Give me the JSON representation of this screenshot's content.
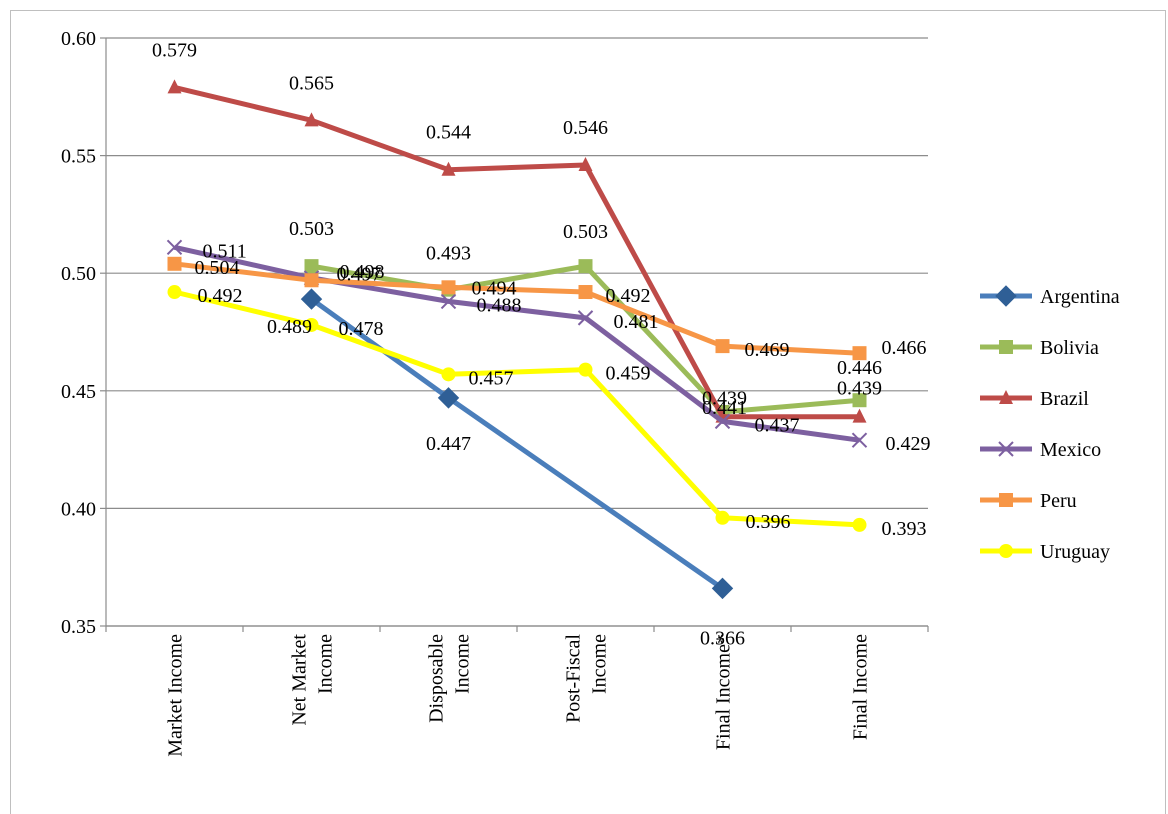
{
  "chart_data": {
    "type": "line",
    "title": "",
    "xlabel": "",
    "ylabel": "",
    "ylim": [
      0.35,
      0.6
    ],
    "y_ticks": [
      "0.35",
      "0.40",
      "0.45",
      "0.50",
      "0.55",
      "0.60"
    ],
    "categories": [
      "Market Income",
      "Net Market Income",
      "Disposable Income",
      "Post-Fiscal Income",
      "Final Income*",
      "Final Income"
    ],
    "grid": "horizontal",
    "legend_position": "right",
    "series": [
      {
        "name": "Argentina",
        "color": "#4a7ebb",
        "marker": "diamond",
        "values": [
          null,
          0.489,
          0.447,
          null,
          0.366,
          null
        ],
        "labels": [
          null,
          "0.489",
          "0.447",
          null,
          "0.366",
          null
        ]
      },
      {
        "name": "Bolivia",
        "color": "#9bbb59",
        "marker": "square",
        "values": [
          null,
          0.503,
          0.493,
          0.503,
          0.441,
          0.446
        ],
        "labels": [
          null,
          "0.503",
          "0.493",
          "0.503",
          "0.441",
          "0.446"
        ]
      },
      {
        "name": "Brazil",
        "color": "#be4b48",
        "marker": "triangle",
        "values": [
          0.579,
          0.565,
          0.544,
          0.546,
          0.439,
          0.439
        ],
        "labels": [
          "0.579",
          "0.565",
          "0.544",
          "0.546",
          "0.439",
          "0.439"
        ]
      },
      {
        "name": "Mexico",
        "color": "#7d60a0",
        "marker": "x",
        "values": [
          0.511,
          0.498,
          0.488,
          0.481,
          0.437,
          0.429
        ],
        "labels": [
          "0.511",
          "0.498",
          "0.488",
          "0.481",
          "0.437",
          "0.429"
        ]
      },
      {
        "name": "Peru",
        "color": "#f79646",
        "marker": "square",
        "values": [
          0.504,
          0.497,
          0.494,
          0.492,
          0.469,
          0.466
        ],
        "labels": [
          "0.504",
          "0.497",
          "0.494",
          "0.492",
          "0.469",
          "0.466"
        ]
      },
      {
        "name": "Uruguay",
        "color": "#ffff00",
        "marker": "circle",
        "values": [
          0.492,
          0.478,
          0.457,
          0.459,
          0.396,
          0.393
        ],
        "labels": [
          "0.492",
          "0.478",
          "0.457",
          "0.459",
          "0.396",
          "0.393"
        ]
      }
    ]
  }
}
